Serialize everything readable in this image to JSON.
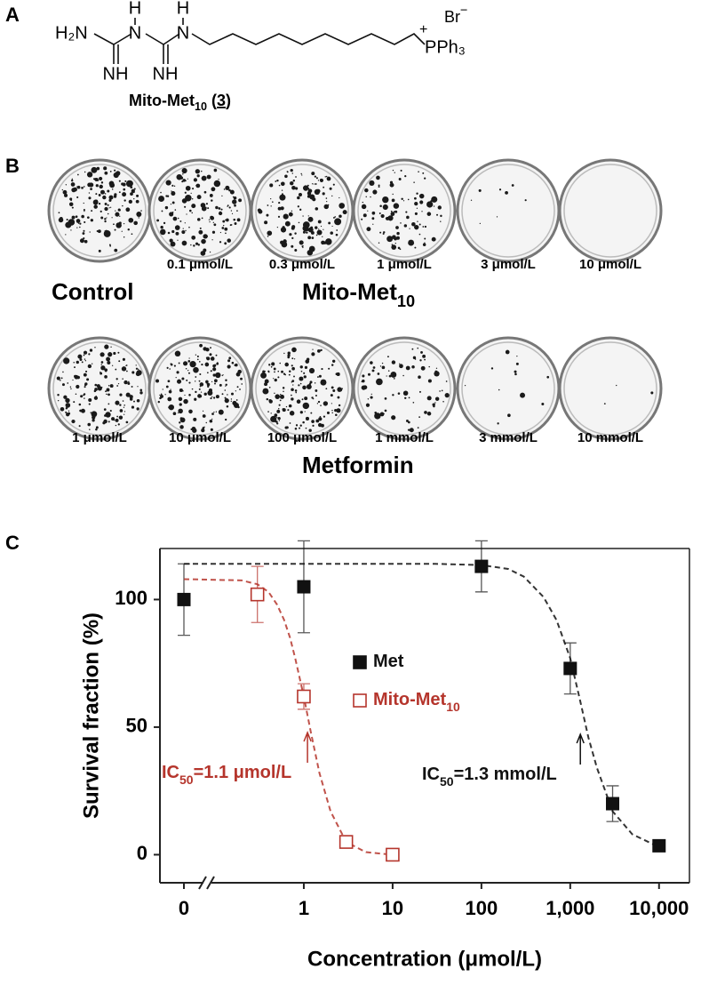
{
  "panel_a": {
    "label": "A",
    "amine": "H₂N",
    "h_top": [
      "H",
      "H"
    ],
    "n_atoms": [
      "N",
      "N"
    ],
    "imines": [
      "NH",
      "NH"
    ],
    "plus": "+",
    "phosphonium": "PPh₃",
    "counterion": "Br",
    "minus": "−",
    "compound": {
      "name": "Mito-Met",
      "sub": "10",
      "open": "(",
      "number": "3",
      "close": ")"
    }
  },
  "panel_b": {
    "label": "B",
    "row1_labels": [
      null,
      "0.1 μmol/L",
      "0.3 μmol/L",
      "1 μmol/L",
      "3 μmol/L",
      "10 μmol/L"
    ],
    "control": "Control",
    "drug1": "Mito-Met",
    "drug1_sub": "10",
    "row2_labels": [
      "1 μmol/L",
      "10 μmol/L",
      "100 μmol/L",
      "1 mmol/L",
      "3 mmol/L",
      "10 mmol/L"
    ],
    "drug2": "Metformin"
  },
  "chart_data": {
    "type": "scatter",
    "label": "C",
    "x_label": "Concentration (μmol/L)",
    "y_label": "Survival fraction (%)",
    "xscale": "log",
    "xlim": [
      0.1,
      22000
    ],
    "xticks": [
      0,
      1,
      10,
      100,
      {
        "value": 1000,
        "label": "1,000"
      },
      {
        "value": 10000,
        "label": "10,000"
      }
    ],
    "ylim": [
      -11,
      120
    ],
    "yticks": [
      0,
      50,
      100
    ],
    "series": [
      {
        "name": "Met",
        "color": "#111111",
        "marker": "filled-square",
        "x": [
          0,
          1,
          100,
          1000,
          3000,
          10000
        ],
        "values": [
          100,
          105,
          113,
          73,
          20,
          3.5
        ],
        "errors": [
          14,
          18,
          10,
          10,
          7,
          1
        ],
        "fit": {
          "x": [
            0,
            30,
            100,
            200,
            300,
            500,
            700,
            1000,
            1300,
            1600,
            2000,
            3000,
            5000,
            10000
          ],
          "values": [
            114,
            114,
            113.5,
            112,
            109,
            101,
            92,
            77,
            60,
            46,
            34,
            17,
            8,
            3
          ]
        }
      },
      {
        "name": "Mito-Met",
        "name_sub": "10",
        "color": "#b5352c",
        "marker": "open-square",
        "x": [
          0.3,
          1,
          3,
          10
        ],
        "values": [
          102,
          62,
          5,
          0
        ],
        "errors": [
          11,
          5,
          1,
          1
        ],
        "fit": {
          "x": [
            0,
            0.2,
            0.3,
            0.4,
            0.5,
            0.6,
            0.7,
            0.8,
            1,
            1.2,
            1.5,
            2,
            3,
            5,
            10
          ],
          "values": [
            108,
            107.5,
            106,
            103,
            98,
            92,
            85,
            77,
            62,
            48,
            32,
            17,
            5,
            1,
            0
          ]
        }
      }
    ],
    "annotations": [
      {
        "pre": "IC",
        "sub": "50",
        "post": "=1.1 μmol/L",
        "x": 1.1,
        "color": "#b5352c"
      },
      {
        "pre": "IC",
        "sub": "50",
        "post": "=1.3 mmol/L",
        "x": 1300,
        "color": "#111111"
      }
    ]
  }
}
